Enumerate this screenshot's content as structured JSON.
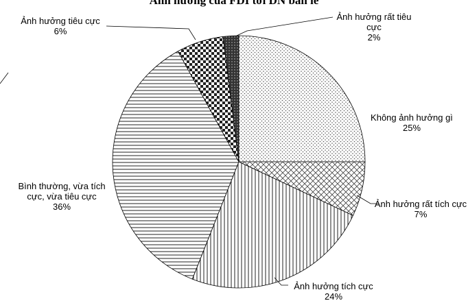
{
  "chart_data": {
    "type": "pie",
    "title": "Ảnh hưởng của FDI tới DN bán lẻ",
    "categories": [
      "Không ảnh hưởng gì",
      "Ảnh hưởng rất tích cực",
      "Ảnh hưởng tích cực",
      "Bình thường, vừa tích cực, vừa tiêu cực",
      "Ảnh hưởng tiêu cực",
      "Ảnh hưởng rất tiêu cực"
    ],
    "values": [
      25,
      7,
      24,
      36,
      6,
      2
    ],
    "value_labels": [
      "25%",
      "7%",
      "24%",
      "36%",
      "6%",
      "2%"
    ]
  }
}
